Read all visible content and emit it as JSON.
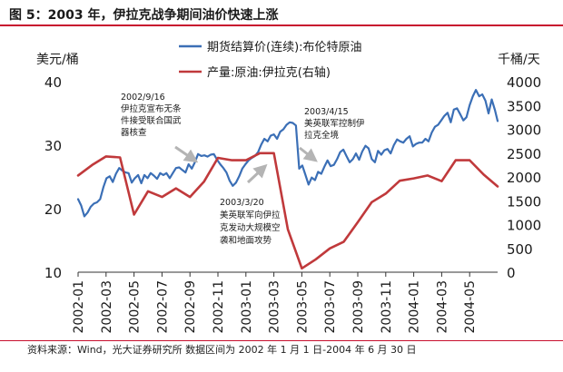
{
  "figure": {
    "title": "图 5：2003 年，伊拉克战争期间油价快速上涨",
    "source": "资料来源：Wind，光大证券研究所  数据区间为 2002 年 1 月 1 日-2004 年 6 月 30 日"
  },
  "colors": {
    "brent": "#3b6fb6",
    "production": "#c0393b",
    "rule": "#c8102e",
    "annotation_arrow": "#b4b4b4"
  },
  "chart_data": {
    "type": "line",
    "x_ticks": [
      "2002-01",
      "2002-03",
      "2002-05",
      "2002-07",
      "2002-09",
      "2002-11",
      "2003-01",
      "2003-03",
      "2003-05",
      "2003-07",
      "2003-09",
      "2003-11",
      "2004-01",
      "2004-03",
      "2004-05"
    ],
    "x_range_months": [
      0,
      30
    ],
    "y_left": {
      "label": "美元/桶",
      "range": [
        10,
        40
      ],
      "ticks": [
        10,
        20,
        30,
        40
      ]
    },
    "y_right": {
      "label": "千桶/天",
      "range": [
        0,
        4000
      ],
      "ticks": [
        0,
        500,
        1000,
        1500,
        2000,
        2500,
        3000,
        3500,
        4000
      ]
    },
    "series": [
      {
        "name": "期货结算价(连续):布伦特原油",
        "axis": "left",
        "color": "#3b6fb6",
        "x": [
          0.0,
          0.22,
          0.45,
          0.68,
          0.9,
          1.13,
          1.35,
          1.58,
          1.81,
          2.03,
          2.26,
          2.48,
          2.71,
          2.94,
          3.16,
          3.39,
          3.61,
          3.84,
          4.06,
          4.29,
          4.52,
          4.74,
          4.97,
          5.19,
          5.42,
          5.65,
          5.87,
          6.1,
          6.32,
          6.55,
          6.77,
          7.0,
          7.23,
          7.45,
          7.68,
          7.9,
          8.13,
          8.35,
          8.58,
          8.81,
          9.03,
          9.26,
          9.48,
          9.71,
          9.94,
          10.16,
          10.39,
          10.61,
          10.84,
          11.06,
          11.29,
          11.52,
          11.74,
          11.97,
          12.19,
          12.42,
          12.65,
          12.87,
          13.1,
          13.32,
          13.55,
          13.77,
          14.0,
          14.23,
          14.45,
          14.68,
          14.9,
          15.13,
          15.35,
          15.58,
          15.81,
          16.03,
          16.26,
          16.48,
          16.71,
          16.94,
          17.16,
          17.39,
          17.61,
          17.84,
          18.06,
          18.29,
          18.52,
          18.74,
          18.97,
          19.19,
          19.42,
          19.65,
          19.87,
          20.1,
          20.32,
          20.55,
          20.77,
          21.0,
          21.23,
          21.45,
          21.68,
          21.9,
          22.13,
          22.35,
          22.58,
          22.81,
          23.03,
          23.26,
          23.48,
          23.71,
          23.94,
          24.16,
          24.39,
          24.61,
          24.84,
          25.06,
          25.29,
          25.52,
          25.74,
          25.97,
          26.19,
          26.42,
          26.65,
          26.87,
          27.1,
          27.32,
          27.55,
          27.77,
          28.0,
          28.23,
          28.45,
          28.68,
          28.9,
          29.13,
          29.35,
          29.58,
          29.81,
          30.0
        ],
        "values": [
          21.5,
          20.5,
          18.8,
          19.4,
          20.3,
          20.8,
          21.0,
          21.5,
          23.4,
          24.8,
          25.1,
          24.2,
          25.5,
          26.4,
          26.0,
          25.7,
          25.6,
          24.1,
          24.8,
          25.3,
          24.0,
          25.3,
          24.8,
          25.6,
          25.2,
          24.7,
          25.6,
          25.3,
          25.6,
          24.8,
          25.6,
          26.4,
          26.5,
          26.1,
          25.7,
          27.0,
          26.3,
          27.3,
          28.6,
          28.3,
          28.4,
          28.2,
          28.5,
          28.6,
          27.7,
          27.0,
          26.4,
          25.7,
          24.4,
          23.6,
          24.1,
          25.1,
          26.3,
          27.0,
          27.6,
          28.0,
          28.3,
          28.9,
          30.1,
          31.0,
          30.6,
          31.5,
          31.7,
          31.0,
          32.1,
          32.5,
          33.2,
          33.6,
          33.5,
          33.1,
          26.3,
          26.8,
          25.3,
          23.8,
          24.9,
          24.5,
          25.8,
          25.5,
          26.6,
          27.6,
          26.7,
          26.9,
          27.8,
          28.9,
          29.3,
          28.3,
          27.3,
          27.8,
          28.7,
          27.7,
          29.0,
          29.9,
          29.5,
          27.8,
          27.3,
          29.1,
          28.5,
          29.2,
          29.4,
          28.7,
          30.0,
          30.9,
          30.6,
          30.4,
          31.0,
          31.4,
          29.8,
          30.2,
          30.4,
          30.4,
          31.0,
          30.6,
          32.0,
          32.9,
          33.2,
          33.9,
          34.6,
          35.1,
          33.6,
          35.6,
          35.8,
          34.9,
          33.9,
          34.4,
          36.3,
          37.7,
          38.7,
          37.7,
          38.0,
          37.0,
          35.0,
          37.2,
          35.5,
          33.8
        ]
      },
      {
        "name": "产量:原油:伊拉克(右轴)",
        "axis": "right",
        "color": "#c0393b",
        "x": [
          0,
          1,
          2,
          3,
          4,
          5,
          6,
          7,
          8,
          9,
          10,
          11,
          12,
          13,
          14,
          15,
          16,
          17,
          18,
          19,
          20,
          21,
          22,
          23,
          24,
          25,
          26,
          27,
          28,
          29,
          30
        ],
        "values": [
          2030,
          2250,
          2430,
          2410,
          1210,
          1700,
          1580,
          1760,
          1580,
          1900,
          2400,
          2350,
          2350,
          2500,
          2500,
          900,
          80,
          270,
          500,
          640,
          1050,
          1470,
          1650,
          1920,
          1970,
          2030,
          1910,
          2350,
          2350,
          2050,
          1800
        ]
      }
    ],
    "legend": {
      "placement": "top-right"
    },
    "annotations": [
      {
        "lines": [
          "2002/9/16",
          "伊拉克宣布无条",
          "件接受联合国武",
          "器核查"
        ]
      },
      {
        "lines": [
          "2003/3/20",
          "美英联军向伊拉",
          "克发动大规模空",
          "袭和地面攻势"
        ]
      },
      {
        "lines": [
          "2003/4/15",
          "美英联军控制伊",
          "拉克全境"
        ]
      }
    ]
  }
}
